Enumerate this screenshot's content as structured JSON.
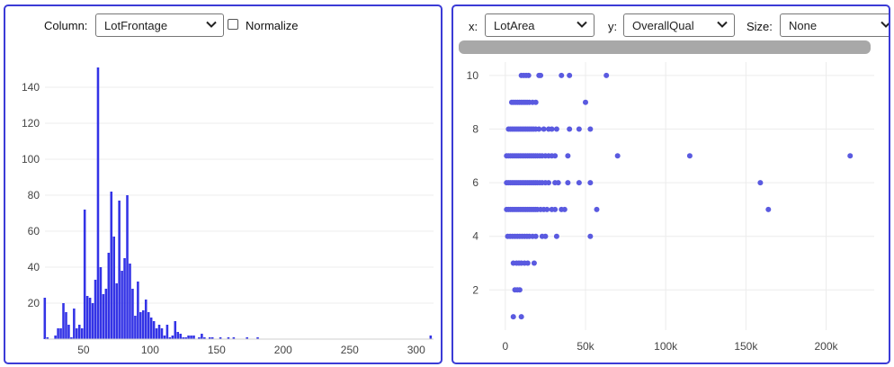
{
  "left_panel": {
    "column_label": "Column:",
    "column_value": "LotFrontage",
    "normalize_label": "Normalize",
    "normalize_checked": false
  },
  "right_panel": {
    "x_label": "x:",
    "x_value": "LotArea",
    "y_label": "y:",
    "y_value": "OverallQual",
    "size_label": "Size:",
    "size_value": "None"
  },
  "colors": {
    "histogram_bar": "#3333e6",
    "scatter_point": "#5a5ae0",
    "panel_border": "#3b3bd6",
    "grid": "#ececec"
  },
  "chart_data": [
    {
      "type": "bar",
      "title": "",
      "xlabel": "",
      "ylabel": "",
      "xlim": [
        21,
        313
      ],
      "ylim": [
        0,
        155
      ],
      "xticks": [
        50,
        100,
        150,
        200,
        250,
        300
      ],
      "yticks": [
        20,
        40,
        60,
        80,
        100,
        120,
        140
      ],
      "grid": true,
      "bin_width": 2,
      "x": [
        21,
        23,
        25,
        27,
        29,
        31,
        33,
        35,
        37,
        39,
        41,
        43,
        45,
        47,
        49,
        51,
        53,
        55,
        57,
        59,
        61,
        63,
        65,
        67,
        69,
        71,
        73,
        75,
        77,
        79,
        81,
        83,
        85,
        87,
        89,
        91,
        93,
        95,
        97,
        99,
        101,
        103,
        105,
        107,
        109,
        111,
        113,
        115,
        117,
        119,
        121,
        123,
        125,
        127,
        129,
        131,
        133,
        135,
        137,
        139,
        141,
        143,
        145,
        147,
        149,
        151,
        153,
        155,
        157,
        159,
        161,
        163,
        165,
        167,
        169,
        171,
        173,
        175,
        177,
        179,
        181,
        183,
        185,
        187,
        189,
        191,
        193,
        195,
        197,
        199,
        311
      ],
      "values": [
        23,
        1,
        0,
        0,
        2,
        6,
        6,
        20,
        15,
        8,
        1,
        17,
        6,
        8,
        6,
        72,
        24,
        23,
        20,
        33,
        151,
        40,
        25,
        28,
        48,
        82,
        57,
        31,
        77,
        38,
        45,
        80,
        42,
        28,
        13,
        32,
        15,
        16,
        22,
        15,
        12,
        10,
        6,
        8,
        6,
        2,
        8,
        1,
        2,
        10,
        4,
        3,
        1,
        1,
        2,
        2,
        2,
        0,
        1,
        3,
        1,
        0,
        1,
        1,
        0,
        0,
        1,
        0,
        0,
        1,
        0,
        1,
        0,
        0,
        0,
        0,
        1,
        0,
        0,
        0,
        1,
        0,
        0,
        0,
        0,
        0,
        0,
        0,
        0,
        0,
        2
      ]
    },
    {
      "type": "scatter",
      "title": "",
      "xlabel": "",
      "ylabel": "",
      "xlim": [
        -10000,
        230000
      ],
      "ylim": [
        0.5,
        10.5
      ],
      "xticks": [
        0,
        50000,
        100000,
        150000,
        200000
      ],
      "xtick_labels": [
        "0",
        "50k",
        "100k",
        "150k",
        "200k"
      ],
      "yticks": [
        2,
        4,
        6,
        8,
        10
      ],
      "grid": true,
      "points": [
        [
          5000,
          1
        ],
        [
          10000,
          1
        ],
        [
          6000,
          2
        ],
        [
          7500,
          2
        ],
        [
          9000,
          2
        ],
        [
          5000,
          3
        ],
        [
          7000,
          3
        ],
        [
          8500,
          3
        ],
        [
          10000,
          3
        ],
        [
          12000,
          3
        ],
        [
          14000,
          3
        ],
        [
          18000,
          3
        ],
        [
          1500,
          4
        ],
        [
          3000,
          4
        ],
        [
          4500,
          4
        ],
        [
          6000,
          4
        ],
        [
          7500,
          4
        ],
        [
          9000,
          4
        ],
        [
          10500,
          4
        ],
        [
          12000,
          4
        ],
        [
          13500,
          4
        ],
        [
          15000,
          4
        ],
        [
          17000,
          4
        ],
        [
          19000,
          4
        ],
        [
          23000,
          4
        ],
        [
          25000,
          4
        ],
        [
          32000,
          4
        ],
        [
          53000,
          4
        ],
        [
          800,
          5
        ],
        [
          2000,
          5
        ],
        [
          3200,
          5
        ],
        [
          4400,
          5
        ],
        [
          5600,
          5
        ],
        [
          6800,
          5
        ],
        [
          8000,
          5
        ],
        [
          9200,
          5
        ],
        [
          10400,
          5
        ],
        [
          11600,
          5
        ],
        [
          12800,
          5
        ],
        [
          14000,
          5
        ],
        [
          15200,
          5
        ],
        [
          16400,
          5
        ],
        [
          17600,
          5
        ],
        [
          18800,
          5
        ],
        [
          20000,
          5
        ],
        [
          22000,
          5
        ],
        [
          24000,
          5
        ],
        [
          26000,
          5
        ],
        [
          29000,
          5
        ],
        [
          31000,
          5
        ],
        [
          35000,
          5
        ],
        [
          37000,
          5
        ],
        [
          57000,
          5
        ],
        [
          164000,
          5
        ],
        [
          800,
          6
        ],
        [
          2000,
          6
        ],
        [
          3200,
          6
        ],
        [
          4400,
          6
        ],
        [
          5600,
          6
        ],
        [
          6800,
          6
        ],
        [
          8000,
          6
        ],
        [
          9200,
          6
        ],
        [
          10400,
          6
        ],
        [
          11600,
          6
        ],
        [
          12800,
          6
        ],
        [
          14000,
          6
        ],
        [
          15200,
          6
        ],
        [
          16400,
          6
        ],
        [
          17600,
          6
        ],
        [
          18800,
          6
        ],
        [
          20000,
          6
        ],
        [
          21500,
          6
        ],
        [
          23000,
          6
        ],
        [
          25000,
          6
        ],
        [
          27000,
          6
        ],
        [
          31000,
          6
        ],
        [
          33000,
          6
        ],
        [
          39000,
          6
        ],
        [
          46000,
          6
        ],
        [
          53000,
          6
        ],
        [
          159000,
          6
        ],
        [
          800,
          7
        ],
        [
          2000,
          7
        ],
        [
          3200,
          7
        ],
        [
          4400,
          7
        ],
        [
          5600,
          7
        ],
        [
          6800,
          7
        ],
        [
          8000,
          7
        ],
        [
          9200,
          7
        ],
        [
          10400,
          7
        ],
        [
          11600,
          7
        ],
        [
          12800,
          7
        ],
        [
          14000,
          7
        ],
        [
          15200,
          7
        ],
        [
          16400,
          7
        ],
        [
          17600,
          7
        ],
        [
          18800,
          7
        ],
        [
          20000,
          7
        ],
        [
          21500,
          7
        ],
        [
          23000,
          7
        ],
        [
          25000,
          7
        ],
        [
          27000,
          7
        ],
        [
          29000,
          7
        ],
        [
          31000,
          7
        ],
        [
          39000,
          7
        ],
        [
          70000,
          7
        ],
        [
          115000,
          7
        ],
        [
          215000,
          7
        ],
        [
          2000,
          8
        ],
        [
          3200,
          8
        ],
        [
          4400,
          8
        ],
        [
          5600,
          8
        ],
        [
          6800,
          8
        ],
        [
          8000,
          8
        ],
        [
          9200,
          8
        ],
        [
          10400,
          8
        ],
        [
          11600,
          8
        ],
        [
          12800,
          8
        ],
        [
          14000,
          8
        ],
        [
          15200,
          8
        ],
        [
          16400,
          8
        ],
        [
          17600,
          8
        ],
        [
          19000,
          8
        ],
        [
          21000,
          8
        ],
        [
          24000,
          8
        ],
        [
          27000,
          8
        ],
        [
          29000,
          8
        ],
        [
          32000,
          8
        ],
        [
          40000,
          8
        ],
        [
          46000,
          8
        ],
        [
          53000,
          8
        ],
        [
          4000,
          9
        ],
        [
          5200,
          9
        ],
        [
          6400,
          9
        ],
        [
          7600,
          9
        ],
        [
          8800,
          9
        ],
        [
          10000,
          9
        ],
        [
          11200,
          9
        ],
        [
          12400,
          9
        ],
        [
          13600,
          9
        ],
        [
          15000,
          9
        ],
        [
          17000,
          9
        ],
        [
          19000,
          9
        ],
        [
          50000,
          9
        ],
        [
          10000,
          10
        ],
        [
          11500,
          10
        ],
        [
          13000,
          10
        ],
        [
          14500,
          10
        ],
        [
          21000,
          10
        ],
        [
          22000,
          10
        ],
        [
          35000,
          10
        ],
        [
          40000,
          10
        ],
        [
          63000,
          10
        ]
      ]
    }
  ]
}
